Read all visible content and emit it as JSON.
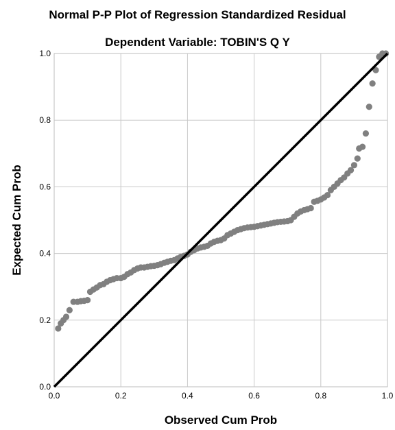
{
  "chart_data": {
    "type": "scatter",
    "title": "Normal P-P Plot of Regression Standardized Residual",
    "subtitle": "Dependent Variable: TOBIN'S Q Y",
    "xlabel": "Observed Cum Prob",
    "ylabel": "Expected Cum Prob",
    "xlim": [
      0,
      1
    ],
    "ylim": [
      0,
      1
    ],
    "xticks": [
      "0.0",
      "0.2",
      "0.4",
      "0.6",
      "0.8",
      "1.0"
    ],
    "yticks": [
      "0.0",
      "0.2",
      "0.4",
      "0.6",
      "0.8",
      "1.0"
    ],
    "grid": true,
    "marker_color": "#808080",
    "line_color": "#000000",
    "reference_line": [
      [
        0,
        0
      ],
      [
        1,
        1
      ]
    ],
    "points": [
      [
        0.012,
        0.175
      ],
      [
        0.02,
        0.19
      ],
      [
        0.028,
        0.2
      ],
      [
        0.036,
        0.21
      ],
      [
        0.046,
        0.23
      ],
      [
        0.058,
        0.255
      ],
      [
        0.07,
        0.255
      ],
      [
        0.08,
        0.257
      ],
      [
        0.09,
        0.258
      ],
      [
        0.1,
        0.26
      ],
      [
        0.108,
        0.285
      ],
      [
        0.118,
        0.292
      ],
      [
        0.128,
        0.298
      ],
      [
        0.138,
        0.305
      ],
      [
        0.148,
        0.308
      ],
      [
        0.158,
        0.315
      ],
      [
        0.168,
        0.32
      ],
      [
        0.178,
        0.323
      ],
      [
        0.188,
        0.326
      ],
      [
        0.2,
        0.326
      ],
      [
        0.21,
        0.33
      ],
      [
        0.22,
        0.338
      ],
      [
        0.23,
        0.343
      ],
      [
        0.24,
        0.35
      ],
      [
        0.25,
        0.355
      ],
      [
        0.26,
        0.358
      ],
      [
        0.27,
        0.358
      ],
      [
        0.28,
        0.36
      ],
      [
        0.29,
        0.362
      ],
      [
        0.3,
        0.363
      ],
      [
        0.31,
        0.365
      ],
      [
        0.32,
        0.368
      ],
      [
        0.33,
        0.372
      ],
      [
        0.34,
        0.375
      ],
      [
        0.35,
        0.378
      ],
      [
        0.36,
        0.38
      ],
      [
        0.37,
        0.385
      ],
      [
        0.38,
        0.39
      ],
      [
        0.39,
        0.393
      ],
      [
        0.4,
        0.397
      ],
      [
        0.41,
        0.405
      ],
      [
        0.42,
        0.41
      ],
      [
        0.43,
        0.415
      ],
      [
        0.44,
        0.418
      ],
      [
        0.45,
        0.42
      ],
      [
        0.46,
        0.423
      ],
      [
        0.47,
        0.43
      ],
      [
        0.48,
        0.435
      ],
      [
        0.49,
        0.438
      ],
      [
        0.5,
        0.44
      ],
      [
        0.51,
        0.445
      ],
      [
        0.52,
        0.455
      ],
      [
        0.53,
        0.46
      ],
      [
        0.54,
        0.465
      ],
      [
        0.55,
        0.47
      ],
      [
        0.56,
        0.473
      ],
      [
        0.57,
        0.476
      ],
      [
        0.58,
        0.478
      ],
      [
        0.59,
        0.479
      ],
      [
        0.6,
        0.48
      ],
      [
        0.61,
        0.482
      ],
      [
        0.62,
        0.484
      ],
      [
        0.63,
        0.486
      ],
      [
        0.64,
        0.488
      ],
      [
        0.65,
        0.49
      ],
      [
        0.66,
        0.492
      ],
      [
        0.67,
        0.494
      ],
      [
        0.68,
        0.495
      ],
      [
        0.69,
        0.496
      ],
      [
        0.7,
        0.497
      ],
      [
        0.71,
        0.5
      ],
      [
        0.72,
        0.51
      ],
      [
        0.73,
        0.52
      ],
      [
        0.74,
        0.526
      ],
      [
        0.75,
        0.53
      ],
      [
        0.76,
        0.533
      ],
      [
        0.77,
        0.536
      ],
      [
        0.78,
        0.555
      ],
      [
        0.79,
        0.558
      ],
      [
        0.8,
        0.562
      ],
      [
        0.81,
        0.568
      ],
      [
        0.82,
        0.575
      ],
      [
        0.83,
        0.59
      ],
      [
        0.84,
        0.6
      ],
      [
        0.85,
        0.61
      ],
      [
        0.86,
        0.62
      ],
      [
        0.87,
        0.628
      ],
      [
        0.88,
        0.64
      ],
      [
        0.89,
        0.65
      ],
      [
        0.9,
        0.665
      ],
      [
        0.91,
        0.685
      ],
      [
        0.915,
        0.715
      ],
      [
        0.925,
        0.72
      ],
      [
        0.935,
        0.76
      ],
      [
        0.945,
        0.84
      ],
      [
        0.955,
        0.91
      ],
      [
        0.965,
        0.95
      ],
      [
        0.975,
        0.99
      ],
      [
        0.985,
        1.0
      ],
      [
        0.995,
        1.0
      ]
    ]
  }
}
